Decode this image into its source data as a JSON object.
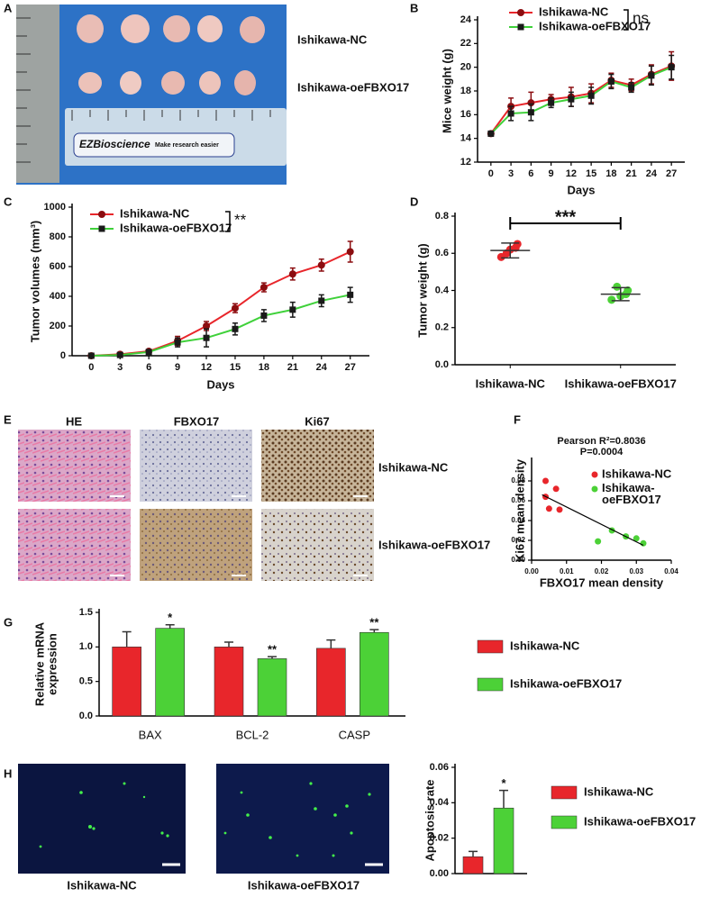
{
  "figure": {
    "panel_letters": [
      "A",
      "B",
      "C",
      "D",
      "E",
      "F",
      "G",
      "H"
    ],
    "a": {
      "labels": [
        "Ishikawa-NC",
        "Ishikawa-oeFBXO17"
      ],
      "ruler_brand": "EZBioscience",
      "ruler_slogan": "Make research easier"
    },
    "e": {
      "columns": [
        "HE",
        "FBXO17",
        "Ki67"
      ],
      "rows": [
        "Ishikawa-NC",
        "Ishikawa-oeFBXO17"
      ]
    },
    "h": {
      "image_labels": [
        "Ishikawa-NC",
        "Ishikawa-oeFBXO17"
      ]
    }
  },
  "chart_data": [
    {
      "type": "line",
      "ylabel": "Mice weight (g)",
      "xlabel": "Days",
      "x": [
        0,
        3,
        6,
        9,
        12,
        15,
        18,
        21,
        24,
        27
      ],
      "xlim": [
        -2,
        29
      ],
      "xticks": [
        0,
        3,
        6,
        9,
        12,
        15,
        18,
        21,
        24,
        27
      ],
      "ylim": [
        12,
        24
      ],
      "yticks": [
        12,
        14,
        16,
        18,
        20,
        22,
        24
      ],
      "series": [
        {
          "name": "Ishikawa-NC",
          "color": "#e8262b",
          "marker": "circle",
          "marker_color": "#8b0d10",
          "values": [
            14.4,
            16.7,
            17.0,
            17.3,
            17.5,
            17.8,
            18.9,
            18.5,
            19.4,
            20.1
          ],
          "errors": [
            0.2,
            0.7,
            0.9,
            0.4,
            0.8,
            0.8,
            0.6,
            0.5,
            0.8,
            1.2
          ]
        },
        {
          "name": "Ishikawa-oeFBXO17",
          "color": "#3fd13a",
          "marker": "square",
          "marker_color": "#1a1a1a",
          "values": [
            14.4,
            16.1,
            16.2,
            17.0,
            17.3,
            17.6,
            18.8,
            18.3,
            19.3,
            20.0
          ],
          "errors": [
            0.2,
            0.6,
            0.7,
            0.4,
            0.6,
            0.7,
            0.6,
            0.4,
            0.8,
            1.0
          ]
        }
      ],
      "annotation": "ns"
    },
    {
      "type": "line",
      "ylabel": "Tumor volumes (mm³)",
      "xlabel": "Days",
      "x": [
        0,
        3,
        6,
        9,
        12,
        15,
        18,
        21,
        24,
        27
      ],
      "xlim": [
        -2,
        29
      ],
      "xticks": [
        0,
        3,
        6,
        9,
        12,
        15,
        18,
        21,
        24,
        27
      ],
      "ylim": [
        0,
        1000
      ],
      "yticks": [
        0,
        200,
        400,
        600,
        800,
        1000
      ],
      "series": [
        {
          "name": "Ishikawa-NC",
          "color": "#e8262b",
          "marker": "circle",
          "marker_color": "#8b0d10",
          "values": [
            0,
            10,
            30,
            100,
            200,
            320,
            460,
            550,
            610,
            700
          ],
          "errors": [
            5,
            5,
            10,
            30,
            30,
            30,
            30,
            40,
            40,
            70
          ]
        },
        {
          "name": "Ishikawa-oeFBXO17",
          "color": "#3fd13a",
          "marker": "square",
          "marker_color": "#1a1a1a",
          "values": [
            0,
            5,
            25,
            90,
            120,
            180,
            270,
            310,
            370,
            410
          ],
          "errors": [
            5,
            5,
            10,
            30,
            60,
            40,
            40,
            50,
            40,
            50
          ]
        }
      ],
      "annotation": "**"
    },
    {
      "type": "dot",
      "ylabel": "Tumor weight (g)",
      "categories": [
        "Ishikawa-NC",
        "Ishikawa-oeFBXO17"
      ],
      "colors": [
        "#e8262b",
        "#4cd137"
      ],
      "ylim": [
        0,
        0.8
      ],
      "yticks": [
        {
          "value": 0,
          "label": "0.0"
        },
        0.2,
        0.4,
        0.6,
        0.8
      ],
      "points": [
        [
          0.58,
          0.62,
          0.65,
          0.6,
          0.63
        ],
        [
          0.35,
          0.37,
          0.4,
          0.42,
          0.38
        ]
      ],
      "means": [
        0.615,
        0.38
      ],
      "errors": [
        0.04,
        0.035
      ],
      "annotation": "***"
    },
    {
      "type": "scatter",
      "title": [
        "Pearson R²=0.8036",
        "P=0.0004"
      ],
      "xlabel": "FBXO17 mean density",
      "ylabel": "Ki67 mean density",
      "xlim": [
        0,
        0.04
      ],
      "xticks": [
        {
          "value": 0,
          "label": "0.00"
        },
        0.01,
        0.02,
        0.03,
        0.04
      ],
      "ylim": [
        0,
        0.1
      ],
      "yticks": [
        {
          "value": 0,
          "label": "0.00"
        },
        0.02,
        0.04,
        0.06,
        0.08
      ],
      "series": [
        {
          "name": "Ishikawa-NC",
          "color": "#e8262b",
          "x": [
            0.004,
            0.004,
            0.007,
            0.005,
            0.008
          ],
          "y": [
            0.08,
            0.064,
            0.072,
            0.052,
            0.051
          ]
        },
        {
          "name": "Ishikawa-oeFBXO17",
          "color": "#4cd137",
          "x": [
            0.019,
            0.023,
            0.027,
            0.03,
            0.032
          ],
          "y": [
            0.019,
            0.03,
            0.024,
            0.022,
            0.017
          ]
        }
      ],
      "fit_line": {
        "x": [
          0.003,
          0.032
        ],
        "y": [
          0.066,
          0.015
        ]
      }
    },
    {
      "type": "bar",
      "ylabel": [
        "Relative mRNA",
        "expression"
      ],
      "categories": [
        "BAX",
        "BCL-2",
        "CASP"
      ],
      "ylim": [
        0,
        1.5
      ],
      "yticks": [
        {
          "value": 0,
          "label": "0.0"
        },
        0.5,
        {
          "value": 1,
          "label": "1.0"
        },
        1.5
      ],
      "series": [
        {
          "name": "Ishikawa-NC",
          "color": "#e8262b",
          "values": [
            1.0,
            1.0,
            0.98
          ],
          "errors": [
            0.22,
            0.07,
            0.12
          ]
        },
        {
          "name": "Ishikawa-oeFBXO17",
          "color": "#4cd137",
          "values": [
            1.27,
            0.83,
            1.21
          ],
          "errors": [
            0.05,
            0.03,
            0.04
          ],
          "annotations": [
            "*",
            "**",
            "**"
          ]
        }
      ]
    },
    {
      "type": "bar",
      "ylabel": [
        "Apoptosis rate"
      ],
      "categories": [
        null
      ],
      "ylim": [
        0,
        0.06
      ],
      "yticks": [
        {
          "value": 0,
          "label": "0.00"
        },
        0.02,
        0.04,
        0.06
      ],
      "series": [
        {
          "name": "Ishikawa-NC",
          "color": "#e8262b",
          "values": [
            0.0095
          ],
          "errors": [
            0.003
          ]
        },
        {
          "name": "Ishikawa-oeFBXO17",
          "color": "#4cd137",
          "values": [
            0.037
          ],
          "errors": [
            0.01
          ],
          "annotations": [
            "*"
          ]
        }
      ]
    }
  ]
}
